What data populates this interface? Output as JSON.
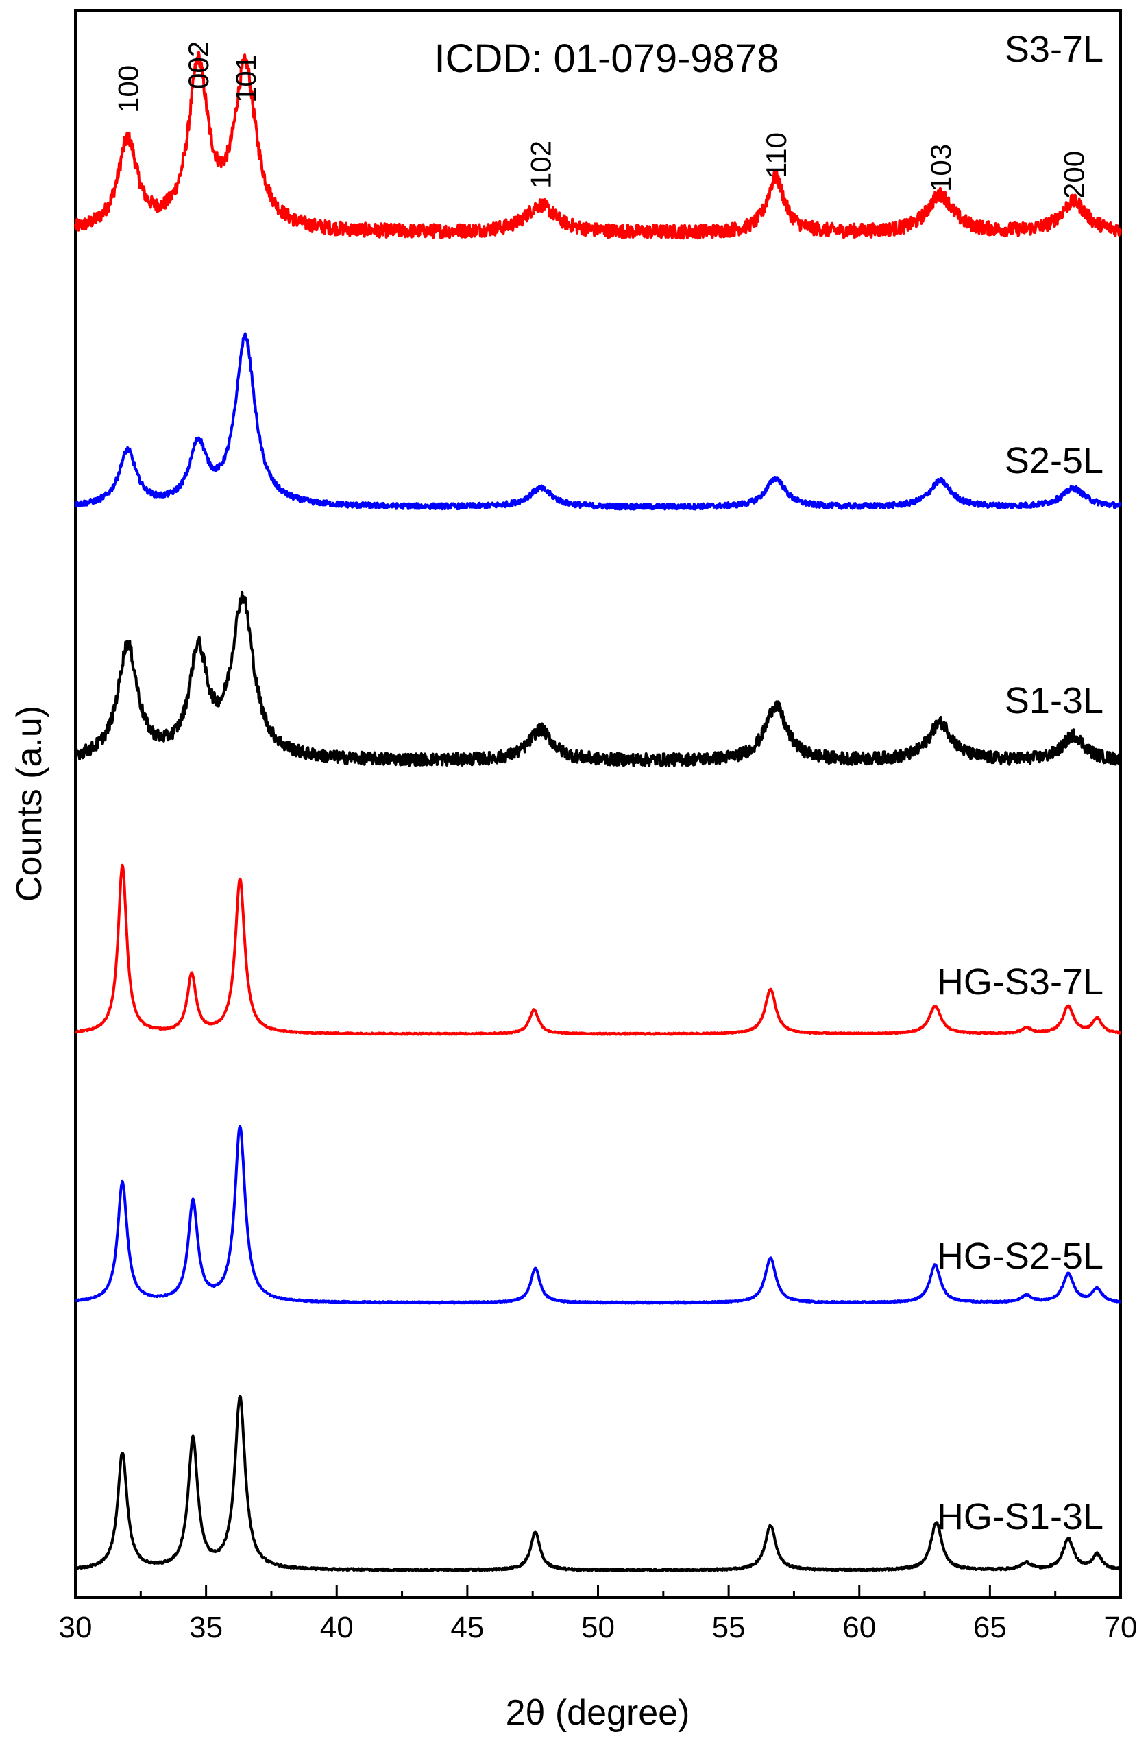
{
  "chart_data": {
    "type": "line",
    "title": "",
    "annotation_title": "ICDD: 01-079-9878",
    "xlabel": "2θ (degree)",
    "ylabel": "Counts (a.u)",
    "xlim": [
      30,
      70
    ],
    "xticks": [
      30,
      35,
      40,
      45,
      50,
      55,
      60,
      65,
      70
    ],
    "yticks_shown": false,
    "peak_labels": [
      {
        "label": "100",
        "x": 32.0
      },
      {
        "label": "002",
        "x": 34.7
      },
      {
        "label": "101",
        "x": 36.5
      },
      {
        "label": "102",
        "x": 47.8
      },
      {
        "label": "110",
        "x": 56.8
      },
      {
        "label": "103",
        "x": 63.1
      },
      {
        "label": "200",
        "x": 68.2
      }
    ],
    "series": [
      {
        "name": "S3-7L",
        "color": "#ff0000",
        "noise": 0.1,
        "peaks": [
          {
            "x": 32.0,
            "h": 1.3,
            "w": 0.45
          },
          {
            "x": 34.7,
            "h": 2.35,
            "w": 0.45
          },
          {
            "x": 36.5,
            "h": 2.35,
            "w": 0.5
          },
          {
            "x": 47.8,
            "h": 0.4,
            "w": 0.7
          },
          {
            "x": 56.8,
            "h": 0.8,
            "w": 0.4
          },
          {
            "x": 63.1,
            "h": 0.55,
            "w": 0.6
          },
          {
            "x": 68.2,
            "h": 0.45,
            "w": 0.6
          }
        ]
      },
      {
        "name": "S2-5L",
        "color": "#0000ff",
        "noise": 0.04,
        "peaks": [
          {
            "x": 32.0,
            "h": 0.8,
            "w": 0.4
          },
          {
            "x": 34.7,
            "h": 0.85,
            "w": 0.4
          },
          {
            "x": 36.5,
            "h": 2.45,
            "w": 0.45
          },
          {
            "x": 47.8,
            "h": 0.27,
            "w": 0.55
          },
          {
            "x": 56.8,
            "h": 0.42,
            "w": 0.45
          },
          {
            "x": 63.1,
            "h": 0.38,
            "w": 0.5
          },
          {
            "x": 68.2,
            "h": 0.27,
            "w": 0.55
          }
        ]
      },
      {
        "name": "S1-3L",
        "color": "#000000",
        "noise": 0.09,
        "peaks": [
          {
            "x": 32.0,
            "h": 1.65,
            "w": 0.45
          },
          {
            "x": 34.7,
            "h": 1.5,
            "w": 0.42
          },
          {
            "x": 36.4,
            "h": 2.3,
            "w": 0.5
          },
          {
            "x": 47.8,
            "h": 0.45,
            "w": 0.55
          },
          {
            "x": 56.8,
            "h": 0.8,
            "w": 0.5
          },
          {
            "x": 63.1,
            "h": 0.55,
            "w": 0.55
          },
          {
            "x": 68.2,
            "h": 0.37,
            "w": 0.5
          }
        ]
      },
      {
        "name": "HG-S3-7L",
        "color": "#ff0000",
        "noise": 0.01,
        "peaks": [
          {
            "x": 31.8,
            "h": 2.45,
            "w": 0.2
          },
          {
            "x": 34.45,
            "h": 0.85,
            "w": 0.2
          },
          {
            "x": 36.3,
            "h": 2.25,
            "w": 0.22
          },
          {
            "x": 47.55,
            "h": 0.35,
            "w": 0.22
          },
          {
            "x": 56.6,
            "h": 0.65,
            "w": 0.25
          },
          {
            "x": 62.9,
            "h": 0.4,
            "w": 0.28
          },
          {
            "x": 66.4,
            "h": 0.08,
            "w": 0.25
          },
          {
            "x": 68.0,
            "h": 0.4,
            "w": 0.25
          },
          {
            "x": 69.1,
            "h": 0.22,
            "w": 0.22
          }
        ]
      },
      {
        "name": "HG-S2-5L",
        "color": "#0000ff",
        "noise": 0.01,
        "peaks": [
          {
            "x": 31.8,
            "h": 1.75,
            "w": 0.22
          },
          {
            "x": 34.5,
            "h": 1.45,
            "w": 0.22
          },
          {
            "x": 36.3,
            "h": 2.55,
            "w": 0.24
          },
          {
            "x": 47.6,
            "h": 0.5,
            "w": 0.22
          },
          {
            "x": 56.6,
            "h": 0.65,
            "w": 0.25
          },
          {
            "x": 62.9,
            "h": 0.55,
            "w": 0.25
          },
          {
            "x": 66.4,
            "h": 0.1,
            "w": 0.25
          },
          {
            "x": 68.0,
            "h": 0.42,
            "w": 0.25
          },
          {
            "x": 69.1,
            "h": 0.2,
            "w": 0.22
          }
        ]
      },
      {
        "name": "HG-S1-3L",
        "color": "#000000",
        "noise": 0.015,
        "peaks": [
          {
            "x": 31.8,
            "h": 1.7,
            "w": 0.22
          },
          {
            "x": 34.5,
            "h": 1.9,
            "w": 0.22
          },
          {
            "x": 36.3,
            "h": 2.5,
            "w": 0.24
          },
          {
            "x": 47.6,
            "h": 0.55,
            "w": 0.22
          },
          {
            "x": 56.6,
            "h": 0.65,
            "w": 0.25
          },
          {
            "x": 62.95,
            "h": 0.7,
            "w": 0.25
          },
          {
            "x": 66.4,
            "h": 0.1,
            "w": 0.25
          },
          {
            "x": 68.0,
            "h": 0.45,
            "w": 0.25
          },
          {
            "x": 69.1,
            "h": 0.22,
            "w": 0.22
          }
        ]
      }
    ],
    "grid": false,
    "legend": "none"
  }
}
